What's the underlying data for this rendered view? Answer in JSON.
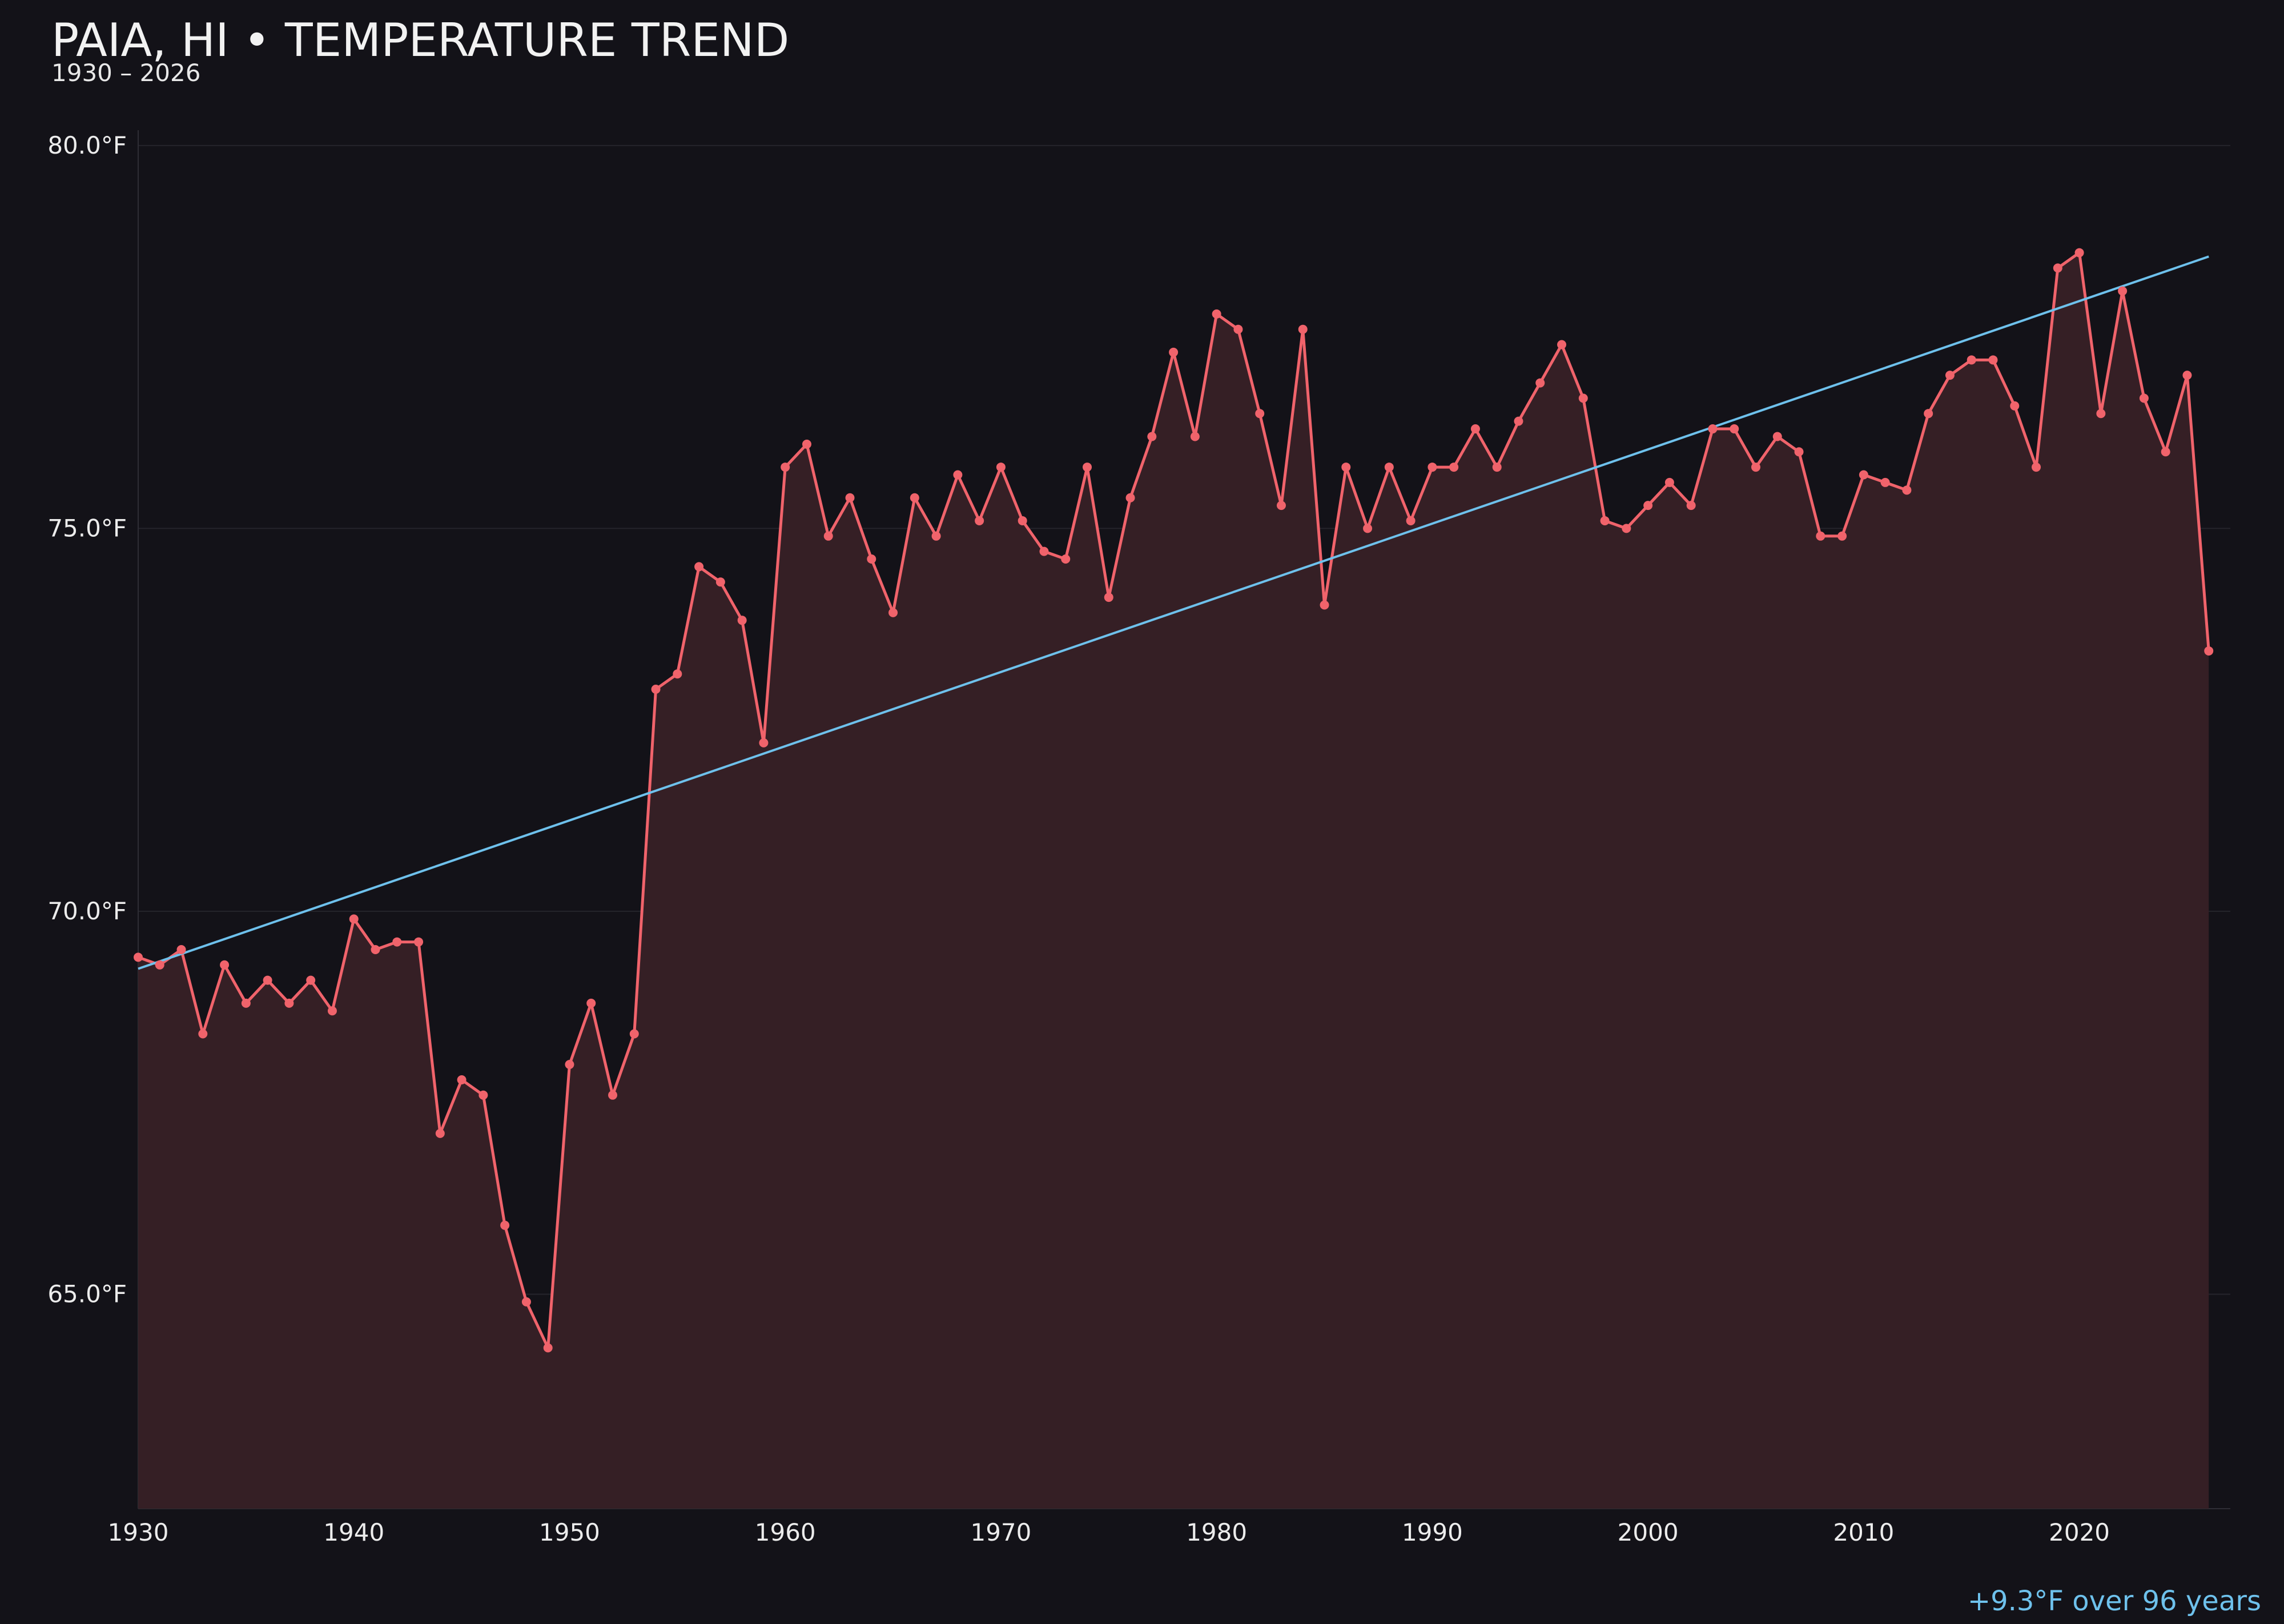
{
  "header": {
    "title": "PAIA, HI • TEMPERATURE TREND",
    "subtitle": "1930 – 2026"
  },
  "footnote": "+9.3°F over 96 years",
  "colors": {
    "background": "#131218",
    "line": "#f0636b",
    "fill": "#351f25",
    "trend": "#6ec1ec",
    "grid": "#25242b",
    "text": "#ececec"
  },
  "chart_data": {
    "type": "line",
    "title": "PAIA, HI • TEMPERATURE TREND",
    "xlim": [
      1930,
      2027
    ],
    "ylim": [
      62.2,
      80.2
    ],
    "x_ticks": [
      1930,
      1940,
      1950,
      1960,
      1970,
      1980,
      1990,
      2000,
      2010,
      2020
    ],
    "x_tick_labels": [
      "1930",
      "1940",
      "1950",
      "1960",
      "1970",
      "1980",
      "1990",
      "2000",
      "2010",
      "2020"
    ],
    "y_ticks": [
      65,
      70,
      75,
      80
    ],
    "y_tick_labels": [
      "65.0°F",
      "70.0°F",
      "75.0°F",
      "80.0°F"
    ],
    "grid": true,
    "area_fill": true,
    "series": [
      {
        "x": [
          1930,
          1931,
          1932,
          1933,
          1934,
          1935,
          1936,
          1937,
          1938,
          1939,
          1940,
          1941,
          1942,
          1943,
          1944,
          1945,
          1946,
          1947,
          1948,
          1949,
          1950,
          1951,
          1952,
          1953,
          1954,
          1955,
          1956,
          1957,
          1958,
          1959,
          1960,
          1961,
          1962,
          1963,
          1964,
          1965,
          1966,
          1967,
          1968,
          1969,
          1970,
          1971,
          1972,
          1973,
          1974,
          1975,
          1976,
          1977,
          1978,
          1979,
          1980,
          1981,
          1982,
          1983,
          1984,
          1985,
          1986,
          1987,
          1988,
          1989,
          1990,
          1991,
          1992,
          1993,
          1994,
          1995,
          1996,
          1997,
          1998,
          1999,
          2000,
          2001,
          2002,
          2003,
          2004,
          2005,
          2006,
          2007,
          2008,
          2009,
          2010,
          2011,
          2012,
          2013,
          2014,
          2015,
          2016,
          2017,
          2018,
          2019,
          2020,
          2021,
          2022,
          2023,
          2024,
          2025,
          2026
        ],
        "y": [
          69.4,
          69.3,
          69.5,
          68.4,
          69.3,
          68.8,
          69.1,
          68.8,
          69.1,
          68.7,
          69.9,
          69.5,
          69.6,
          69.6,
          67.1,
          67.8,
          67.6,
          65.9,
          64.9,
          64.3,
          68.0,
          68.8,
          67.6,
          68.4,
          72.9,
          73.1,
          74.5,
          74.3,
          73.8,
          72.2,
          75.8,
          76.1,
          74.9,
          75.4,
          74.6,
          73.9,
          75.4,
          74.9,
          75.7,
          75.1,
          75.8,
          75.1,
          74.7,
          74.6,
          75.8,
          74.1,
          75.4,
          76.2,
          77.3,
          76.2,
          77.8,
          77.6,
          76.5,
          75.3,
          77.6,
          74.0,
          75.8,
          75.0,
          75.8,
          75.1,
          75.8,
          75.8,
          76.3,
          75.8,
          76.4,
          76.9,
          77.4,
          76.7,
          75.1,
          75.0,
          75.3,
          75.6,
          75.3,
          76.3,
          76.3,
          75.8,
          76.2,
          76.0,
          74.9,
          74.9,
          75.7,
          75.6,
          75.5,
          76.5,
          77.0,
          77.2,
          77.2,
          76.6,
          75.8,
          78.4,
          78.6,
          76.5,
          78.1,
          76.7,
          76.0,
          77.0,
          73.4
        ]
      }
    ],
    "trend": {
      "x": [
        1930,
        2026
      ],
      "y": [
        69.25,
        78.55
      ]
    }
  }
}
